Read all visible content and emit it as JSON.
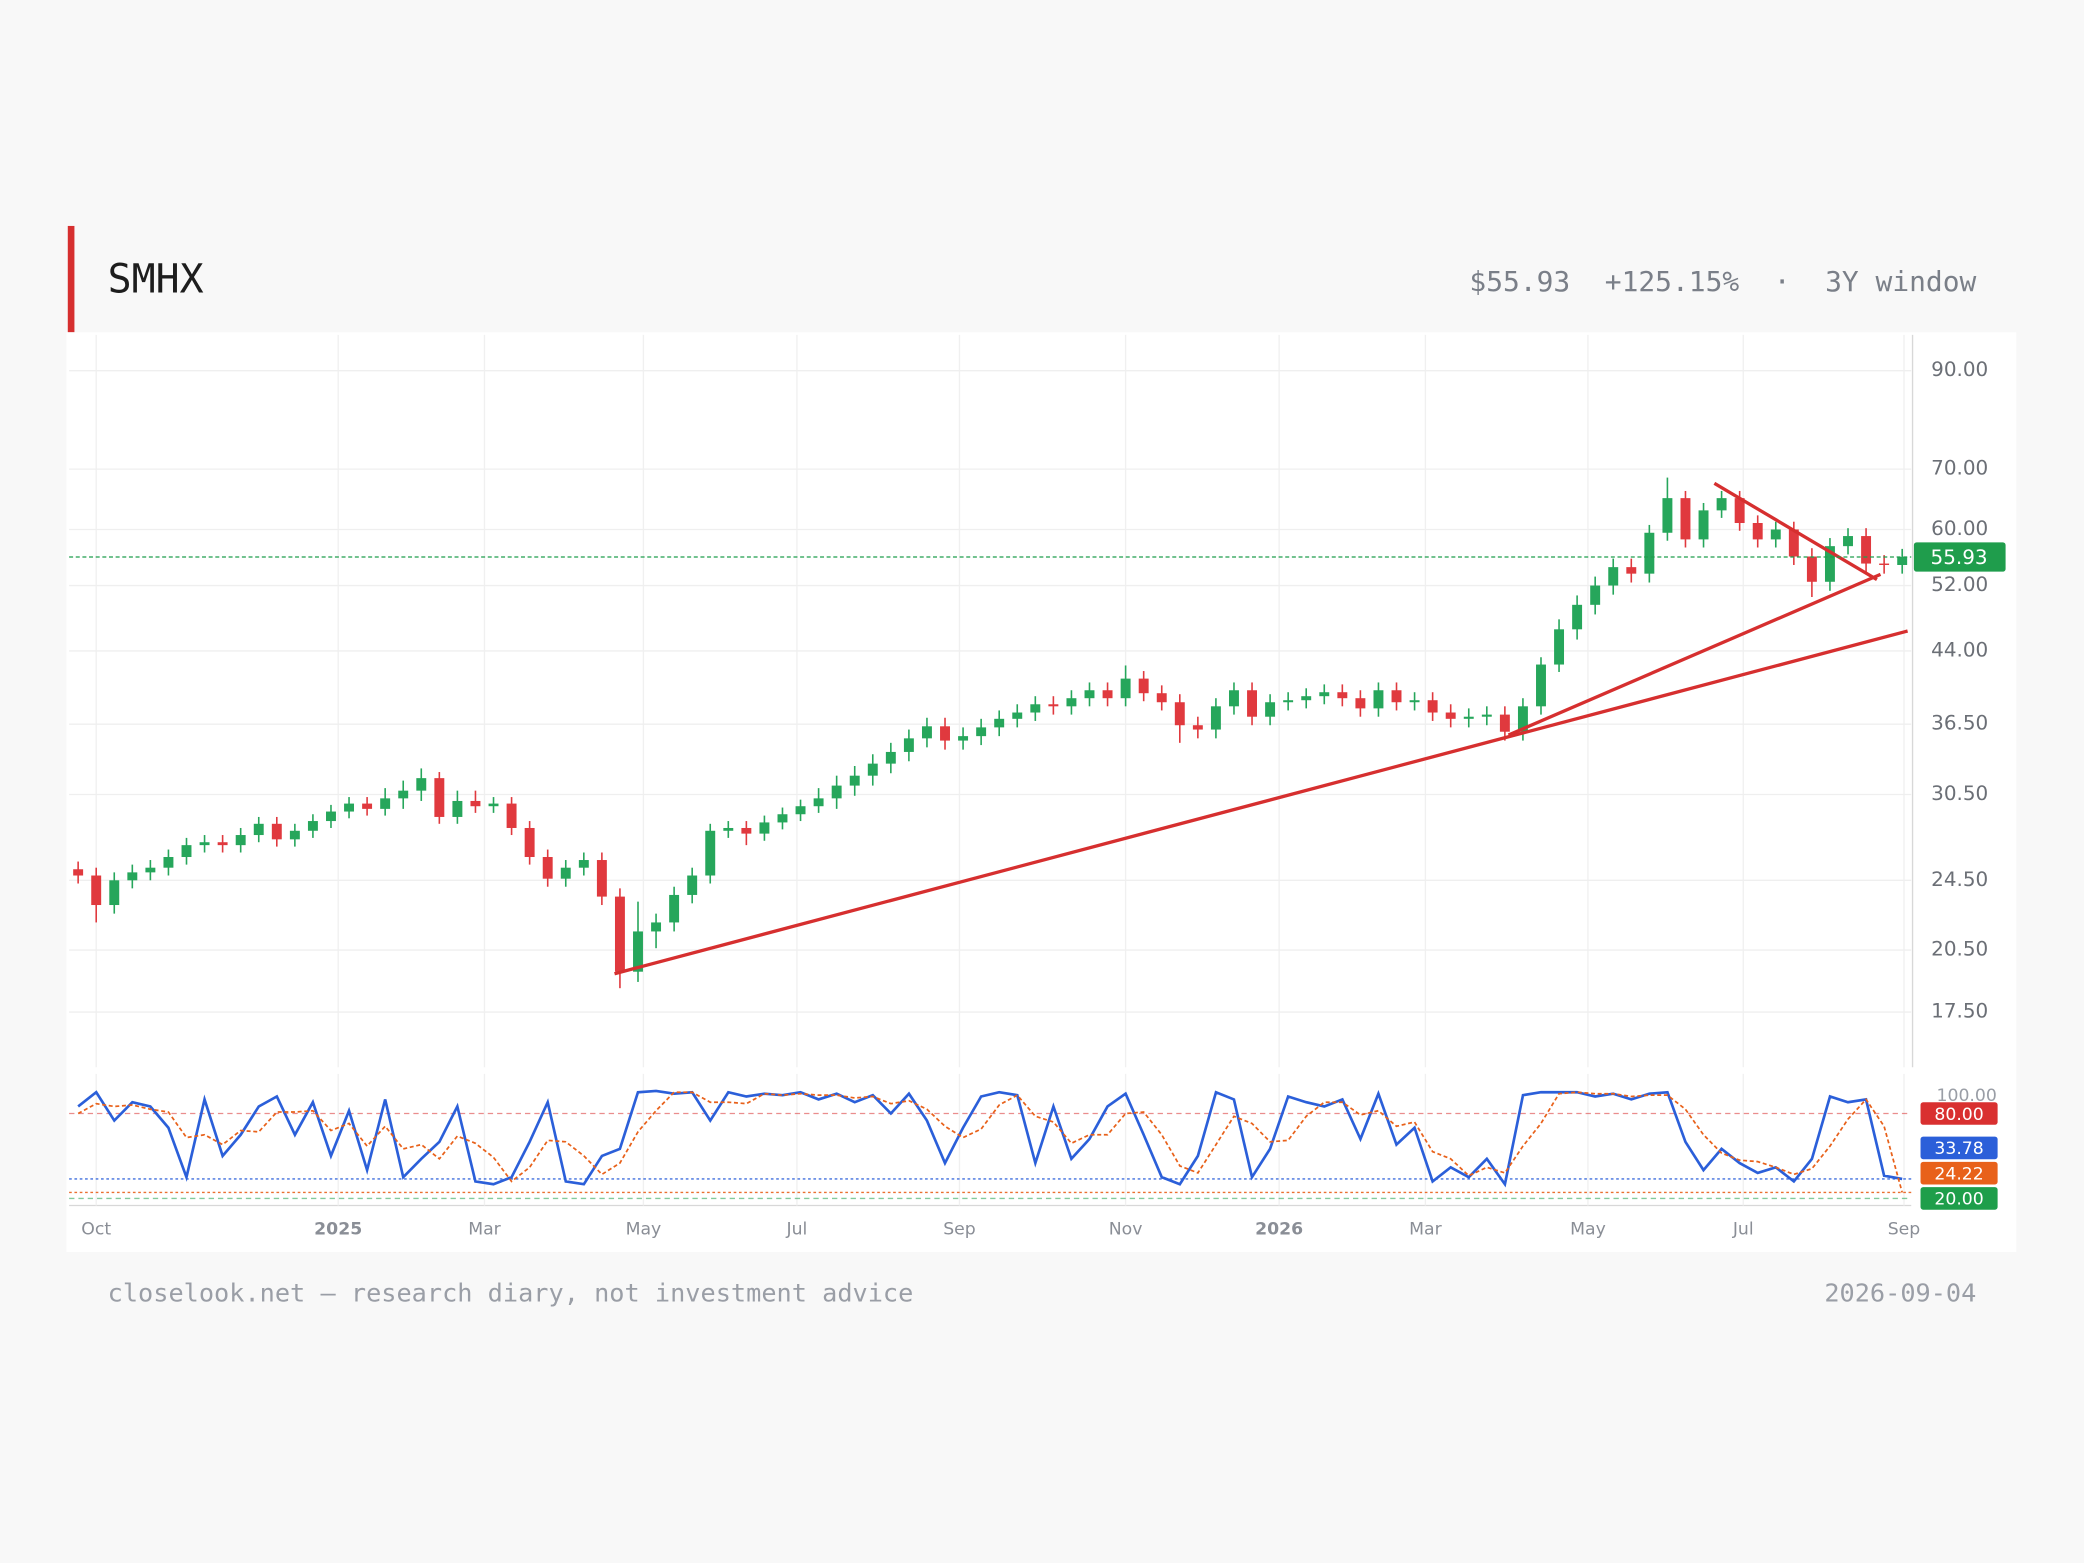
{
  "header": {
    "title": "SMHX",
    "price": "$55.93",
    "change": "+125.15%",
    "separator": "·",
    "window": "3Y window"
  },
  "footer": {
    "note": "closelook.net — research diary, not investment advice",
    "date": "2026-09-04"
  },
  "chart_data": [
    {
      "type": "candlestick",
      "log": true,
      "grid": true,
      "xlim": [
        0,
        102
      ],
      "ylim": [
        15.2,
        98.6
      ],
      "yticks": [
        {
          "value": 17.5,
          "label": "17.50"
        },
        {
          "value": 20.5,
          "label": "20.50"
        },
        {
          "value": 24.5,
          "label": "24.50"
        },
        {
          "value": 30.5,
          "label": "30.50"
        },
        {
          "value": 36.5,
          "label": "36.50"
        },
        {
          "value": 44,
          "label": "44.00"
        },
        {
          "value": 52,
          "label": "52.00"
        },
        {
          "value": 60,
          "label": "60.00"
        },
        {
          "value": 70,
          "label": "70.00"
        },
        {
          "value": 90,
          "label": "90.00"
        }
      ],
      "up_color": "#26a65b",
      "down_color": "#e0393e",
      "last_color": "#1f9d4c",
      "open": [
        25.2,
        24.8,
        23.0,
        24.5,
        25.0,
        25.3,
        26.0,
        26.8,
        27.0,
        26.8,
        27.5,
        28.3,
        27.2,
        27.8,
        28.5,
        29.2,
        29.8,
        29.4,
        30.2,
        30.8,
        31.8,
        28.8,
        30.0,
        29.6,
        29.8,
        28.0,
        26.0,
        24.6,
        25.3,
        25.8,
        23.5,
        19.4,
        21.5,
        22.0,
        23.6,
        24.8,
        27.8,
        28.0,
        27.6,
        28.4,
        29.0,
        29.6,
        30.2,
        31.2,
        32.0,
        33.0,
        34.0,
        35.2,
        36.3,
        35.0,
        35.4,
        36.2,
        37.0,
        37.6,
        38.4,
        38.2,
        39.0,
        39.8,
        39.0,
        41.0,
        39.5,
        38.6,
        36.4,
        36.0,
        38.2,
        39.8,
        37.2,
        38.6,
        38.8,
        39.2,
        39.6,
        39.0,
        38.0,
        39.8,
        38.6,
        38.8,
        37.6,
        37.0,
        37.2,
        37.4,
        35.8,
        38.2,
        42.5,
        46.5,
        49.5,
        52.0,
        54.5,
        53.6,
        59.5,
        65.0,
        58.5,
        63.0,
        65.0,
        61.0,
        58.5,
        60.0,
        56.0,
        52.5,
        57.5,
        59.0,
        55.0,
        54.8
      ],
      "high": [
        25.7,
        25.3,
        25.0,
        25.5,
        25.8,
        26.5,
        27.3,
        27.5,
        27.5,
        28.0,
        28.8,
        28.8,
        28.3,
        29.0,
        29.7,
        30.3,
        30.3,
        31.0,
        31.6,
        32.6,
        32.3,
        30.8,
        30.8,
        30.3,
        30.3,
        28.5,
        26.5,
        25.8,
        26.3,
        26.3,
        24.0,
        23.2,
        22.5,
        24.1,
        25.3,
        28.3,
        28.5,
        28.5,
        28.9,
        29.5,
        30.1,
        31.0,
        32.0,
        32.8,
        33.8,
        34.8,
        36.0,
        37.1,
        37.1,
        36.2,
        37.0,
        37.8,
        38.4,
        39.2,
        39.2,
        39.8,
        40.6,
        40.6,
        42.4,
        41.8,
        40.3,
        39.4,
        37.2,
        39.0,
        40.6,
        40.6,
        39.4,
        39.6,
        40.0,
        40.4,
        40.4,
        39.8,
        40.6,
        40.6,
        39.6,
        39.6,
        38.4,
        38.0,
        38.2,
        38.2,
        39.0,
        43.3,
        47.7,
        50.7,
        53.2,
        55.7,
        55.7,
        60.7,
        68.5,
        66.2,
        64.2,
        66.2,
        66.2,
        62.2,
        61.2,
        61.2,
        57.2,
        58.7,
        60.2,
        60.2,
        56.2,
        57.1
      ],
      "low": [
        24.3,
        22.0,
        22.5,
        24.0,
        24.5,
        24.8,
        25.5,
        26.3,
        26.3,
        26.3,
        27.0,
        26.7,
        26.7,
        27.3,
        28.0,
        28.7,
        28.9,
        28.9,
        29.4,
        30.0,
        28.3,
        28.3,
        29.1,
        29.1,
        27.5,
        25.5,
        24.1,
        24.1,
        24.8,
        23.0,
        18.6,
        18.9,
        20.6,
        21.5,
        23.1,
        24.3,
        27.3,
        26.8,
        27.1,
        27.9,
        28.5,
        29.1,
        29.4,
        30.4,
        31.2,
        32.2,
        33.2,
        34.4,
        34.2,
        34.2,
        34.6,
        35.4,
        36.2,
        36.8,
        37.4,
        37.4,
        38.2,
        38.2,
        38.2,
        38.7,
        37.8,
        34.8,
        35.2,
        35.2,
        37.4,
        36.4,
        36.4,
        37.8,
        38.0,
        38.4,
        38.2,
        37.2,
        37.2,
        37.8,
        37.8,
        36.8,
        36.2,
        36.2,
        36.4,
        35.0,
        35.0,
        37.4,
        41.7,
        45.3,
        48.3,
        50.8,
        52.4,
        52.4,
        58.3,
        57.3,
        57.3,
        61.8,
        59.8,
        57.3,
        57.3,
        54.8,
        50.5,
        51.3,
        56.3,
        53.8,
        53.6,
        53.6
      ],
      "close": [
        24.8,
        23.0,
        24.5,
        25.0,
        25.3,
        26.0,
        26.8,
        27.0,
        26.8,
        27.5,
        28.3,
        27.2,
        27.8,
        28.5,
        29.2,
        29.8,
        29.4,
        30.2,
        30.8,
        31.8,
        28.8,
        30.0,
        29.6,
        29.8,
        28.0,
        26.0,
        24.6,
        25.3,
        25.8,
        23.5,
        19.4,
        21.5,
        22.0,
        23.6,
        24.8,
        27.8,
        28.0,
        27.6,
        28.4,
        29.0,
        29.6,
        30.2,
        31.2,
        32.0,
        33.0,
        34.0,
        35.2,
        36.3,
        35.0,
        35.4,
        36.2,
        37.0,
        37.6,
        38.4,
        38.2,
        39.0,
        39.8,
        39.0,
        41.0,
        39.5,
        38.6,
        36.4,
        36.0,
        38.2,
        39.8,
        37.2,
        38.6,
        38.8,
        39.2,
        39.6,
        39.0,
        38.0,
        39.8,
        38.6,
        38.8,
        37.6,
        37.0,
        37.2,
        37.4,
        35.8,
        38.2,
        42.5,
        46.5,
        49.5,
        52.0,
        54.5,
        53.6,
        59.5,
        65.0,
        58.5,
        63.0,
        65.0,
        61.0,
        58.5,
        60.0,
        56.0,
        52.5,
        57.5,
        59.0,
        55.0,
        54.8,
        55.93
      ],
      "trend_color": "#d62f2f",
      "trendlines": [
        {
          "x": [
            30.2,
            101.8
          ],
          "y": [
            19.3,
            46.3
          ]
        },
        {
          "x": [
            79.7,
            100.3
          ],
          "y": [
            35.5,
            53.5
          ]
        },
        {
          "x": [
            91.1,
            100.1
          ],
          "y": [
            67.5,
            52.8
          ]
        }
      ]
    },
    {
      "type": "oscillator",
      "grid": true,
      "xlim": [
        0,
        102
      ],
      "xticks": [
        {
          "value": 1.5,
          "label": "Oct"
        },
        {
          "value": 14.9,
          "label": "2025"
        },
        {
          "value": 23.0,
          "label": "Mar"
        },
        {
          "value": 31.8,
          "label": "May"
        },
        {
          "value": 40.3,
          "label": "Jul"
        },
        {
          "value": 49.3,
          "label": "Sep"
        },
        {
          "value": 58.5,
          "label": "Nov"
        },
        {
          "value": 67.0,
          "label": "2026"
        },
        {
          "value": 75.1,
          "label": "Mar"
        },
        {
          "value": 84.1,
          "label": "May"
        },
        {
          "value": 92.7,
          "label": "Jul"
        },
        {
          "value": 101.6,
          "label": "Sep"
        }
      ],
      "ylim": [
        15,
        108
      ],
      "yticks": [
        {
          "value": 100,
          "label": "100.00"
        },
        {
          "value": 80,
          "label": "80.00",
          "color": "#d93030"
        },
        {
          "value": 20,
          "label": "20.00",
          "color": "#1e9e4a"
        }
      ],
      "series": [
        {
          "color": "#2b5fd9",
          "values": [
            85,
            95,
            75,
            88,
            85,
            70,
            35,
            90,
            50,
            65,
            85,
            92,
            65,
            88,
            50,
            82,
            40,
            90,
            35,
            48,
            60,
            85,
            32,
            30,
            35,
            60,
            88,
            32,
            30,
            50,
            55,
            95,
            96,
            94,
            95,
            75,
            95,
            92,
            94,
            93,
            95,
            90,
            94,
            88,
            93,
            80,
            94,
            75,
            45,
            70,
            92,
            95,
            93,
            45,
            85,
            48,
            62,
            85,
            94,
            65,
            35,
            30,
            50,
            95,
            90,
            35,
            55,
            92,
            88,
            85,
            90,
            62,
            94,
            58,
            70,
            32,
            42,
            35,
            48,
            30,
            93,
            95,
            95,
            95,
            92,
            94,
            90,
            94,
            95,
            60,
            40,
            55,
            45,
            38,
            42,
            32,
            48,
            92,
            88,
            90,
            36,
            33.78
          ]
        },
        {
          "color": "#e8611a",
          "dash": true,
          "values": [
            80,
            87,
            85,
            86,
            83,
            81,
            63,
            65,
            58,
            68,
            67,
            81,
            81,
            82,
            68,
            73,
            57,
            71,
            55,
            58,
            48,
            64,
            59,
            49,
            32,
            42,
            61,
            60,
            50,
            37,
            45,
            67,
            82,
            95,
            95,
            88,
            88,
            87,
            94,
            93,
            94,
            93,
            93,
            91,
            92,
            87,
            89,
            83,
            71,
            63,
            69,
            86,
            93,
            78,
            74,
            59,
            65,
            65,
            80,
            81,
            65,
            43,
            38,
            58,
            78,
            73,
            60,
            61,
            78,
            88,
            88,
            79,
            82,
            71,
            74,
            53,
            48,
            36,
            42,
            38,
            57,
            73,
            94,
            95,
            94,
            94,
            92,
            93,
            93,
            83,
            65,
            52,
            47,
            46,
            42,
            37,
            41,
            57,
            76,
            90,
            71,
            24.22
          ]
        }
      ]
    }
  ]
}
